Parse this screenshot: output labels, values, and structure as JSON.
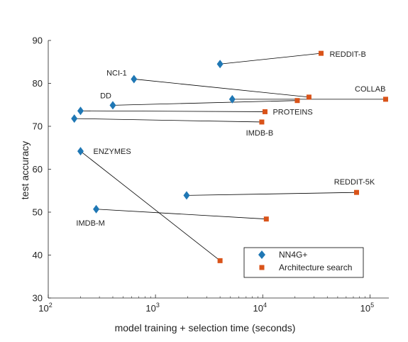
{
  "chart_data": {
    "type": "scatter",
    "xlabel": "model training + selection time (seconds)",
    "ylabel": "test accuracy",
    "xscale": "log",
    "xlim": [
      100,
      150000
    ],
    "ylim": [
      30,
      90
    ],
    "xtick_labels": [
      {
        "base": "10",
        "exp": "2"
      },
      {
        "base": "10",
        "exp": "3"
      },
      {
        "base": "10",
        "exp": "4"
      },
      {
        "base": "10",
        "exp": "5"
      }
    ],
    "ytick_labels": [
      "30",
      "40",
      "50",
      "60",
      "70",
      "80",
      "90"
    ],
    "legend": {
      "position": "bottom-right",
      "entries": [
        "NN4G+",
        "Architecture search"
      ]
    },
    "colors": {
      "nn4g": "#1f77b4",
      "arch": "#d95319",
      "line": "#000000"
    },
    "series": [
      {
        "name": "NN4G+",
        "marker": "diamond",
        "points": [
          {
            "label": "REDDIT-B",
            "x": 4000,
            "y": 84.5
          },
          {
            "label": "NCI-1",
            "x": 630,
            "y": 81
          },
          {
            "label": "COLLAB",
            "x": 5200,
            "y": 76.3
          },
          {
            "label": "DD",
            "x": 400,
            "y": 74.9
          },
          {
            "label": "PROTEINS",
            "x": 200,
            "y": 73.6
          },
          {
            "label": "IMDB-B",
            "x": 175,
            "y": 71.8
          },
          {
            "label": "ENZYMES",
            "x": 200,
            "y": 64.2
          },
          {
            "label": "REDDIT-5K",
            "x": 1950,
            "y": 53.9
          },
          {
            "label": "IMDB-M",
            "x": 280,
            "y": 50.7
          }
        ]
      },
      {
        "name": "Architecture search",
        "marker": "square",
        "points": [
          {
            "label": "REDDIT-B",
            "x": 35000,
            "y": 87
          },
          {
            "label": "NCI-1",
            "x": 27000,
            "y": 76.8
          },
          {
            "label": "COLLAB",
            "x": 140000,
            "y": 76.3
          },
          {
            "label": "DD",
            "x": 21000,
            "y": 76.0
          },
          {
            "label": "PROTEINS",
            "x": 10500,
            "y": 73.4
          },
          {
            "label": "IMDB-B",
            "x": 9800,
            "y": 71.0
          },
          {
            "label": "ENZYMES",
            "x": 4000,
            "y": 38.7
          },
          {
            "label": "REDDIT-5K",
            "x": 75000,
            "y": 54.6
          },
          {
            "label": "IMDB-M",
            "x": 10800,
            "y": 48.4
          }
        ]
      }
    ],
    "point_labels": [
      "REDDIT-B",
      "NCI-1",
      "COLLAB",
      "DD",
      "PROTEINS",
      "IMDB-B",
      "ENZYMES",
      "REDDIT-5K",
      "IMDB-M"
    ]
  }
}
